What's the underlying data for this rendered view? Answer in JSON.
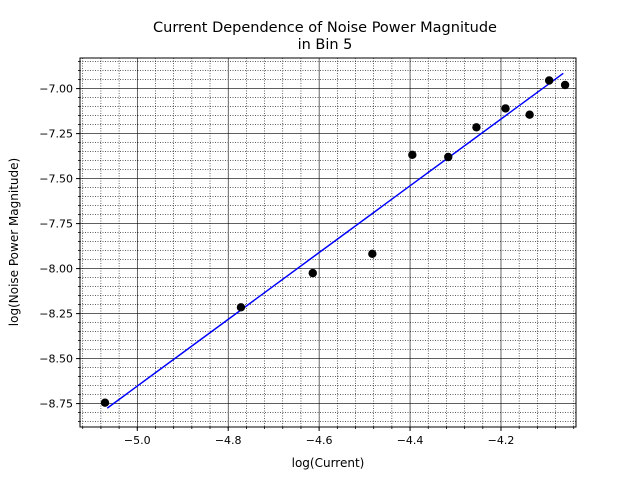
{
  "chart_data": {
    "type": "scatter",
    "title_lines": [
      "Current Dependence of Noise Power Magnitude",
      "in Bin 5"
    ],
    "xlabel": "log(Current)",
    "ylabel": "log(Noise Power Magnitude)",
    "xlim": [
      -5.126,
      -4.035
    ],
    "ylim": [
      -8.88,
      -6.83
    ],
    "x_ticks": [
      -5.0,
      -4.8,
      -4.6,
      -4.4,
      -4.2
    ],
    "x_tick_labels": [
      "−5.0",
      "−4.8",
      "−4.6",
      "−4.4",
      "−4.2"
    ],
    "y_ticks": [
      -8.75,
      -8.5,
      -8.25,
      -8.0,
      -7.75,
      -7.5,
      -7.25,
      -7.0
    ],
    "y_tick_labels": [
      "−8.75",
      "−8.50",
      "−8.25",
      "−8.00",
      "−7.75",
      "−7.50",
      "−7.25",
      "−7.00"
    ],
    "grid": true,
    "points": [
      {
        "x": -5.071,
        "y": -8.745
      },
      {
        "x": -4.772,
        "y": -8.215
      },
      {
        "x": -4.614,
        "y": -8.025
      },
      {
        "x": -4.483,
        "y": -7.918
      },
      {
        "x": -4.395,
        "y": -7.368
      },
      {
        "x": -4.316,
        "y": -7.38
      },
      {
        "x": -4.254,
        "y": -7.215
      },
      {
        "x": -4.19,
        "y": -7.11
      },
      {
        "x": -4.137,
        "y": -7.145
      },
      {
        "x": -4.094,
        "y": -6.955
      },
      {
        "x": -4.059,
        "y": -6.98
      }
    ],
    "fit_line": {
      "x": [
        -5.066,
        -4.063
      ],
      "y": [
        -8.775,
        -6.915
      ]
    },
    "colors": {
      "points": "#000000",
      "fit": "#0000ff",
      "major_grid": "#000000",
      "minor_grid": "#000000"
    }
  }
}
